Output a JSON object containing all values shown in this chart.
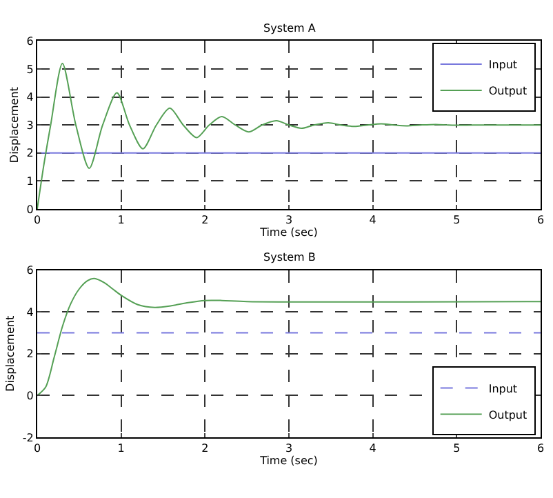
{
  "chart_data": [
    {
      "type": "line",
      "title": "System A",
      "xlabel": "Time (sec)",
      "ylabel": "Displacement",
      "xlim": [
        0,
        6
      ],
      "xticks": [
        0,
        1,
        2,
        3,
        4,
        5,
        6
      ],
      "ylim": [
        0,
        6
      ],
      "yticks": [
        0,
        1,
        2,
        3,
        4,
        5,
        6
      ],
      "grid": true,
      "legend": "top right",
      "series": [
        {
          "name": "Input",
          "color": "#7777dd",
          "line_style": "solid",
          "x": [
            0,
            6
          ],
          "values": [
            2,
            2
          ]
        },
        {
          "name": "Output",
          "color": "#55a055",
          "line_style": "solid",
          "x": [
            0,
            0.08,
            0.16,
            0.3,
            0.46,
            0.62,
            0.78,
            0.95,
            1.1,
            1.26,
            1.42,
            1.58,
            1.74,
            1.9,
            2.05,
            2.2,
            2.36,
            2.52,
            2.68,
            2.85,
            3.0,
            3.15,
            3.3,
            3.47,
            3.62,
            3.78,
            3.94,
            4.1,
            4.25,
            4.4,
            4.57,
            4.75,
            4.9,
            5.05,
            5.2,
            6
          ],
          "values": [
            0,
            1.6,
            3,
            5.2,
            3,
            1.45,
            3,
            4.15,
            3,
            2.15,
            3,
            3.6,
            3,
            2.55,
            3,
            3.3,
            3,
            2.75,
            3,
            3.15,
            3,
            2.88,
            3,
            3.08,
            3,
            2.95,
            3,
            3.04,
            3,
            2.97,
            3,
            3.02,
            3,
            2.99,
            3,
            3
          ]
        }
      ]
    },
    {
      "type": "line",
      "title": "System B",
      "xlabel": "Time (sec)",
      "ylabel": "Displacement",
      "xlim": [
        0,
        6
      ],
      "xticks": [
        0,
        1,
        2,
        3,
        4,
        5,
        6
      ],
      "ylim": [
        -2,
        6
      ],
      "yticks": [
        -2,
        0,
        2,
        4,
        6
      ],
      "grid": true,
      "legend": "bottom right",
      "series": [
        {
          "name": "Input",
          "color": "#7777dd",
          "line_style": "dashed",
          "x": [
            0,
            6
          ],
          "values": [
            3,
            3
          ]
        },
        {
          "name": "Output",
          "color": "#55a055",
          "line_style": "solid",
          "x": [
            0,
            0.1,
            0.2,
            0.3,
            0.4,
            0.5,
            0.6,
            0.68,
            0.8,
            0.9,
            1.0,
            1.2,
            1.4,
            1.6,
            1.8,
            2.0,
            2.2,
            2.5,
            6
          ],
          "values": [
            0,
            0.4,
            1.8,
            3.3,
            4.4,
            5.1,
            5.5,
            5.6,
            5.4,
            5.1,
            4.8,
            4.35,
            4.22,
            4.3,
            4.45,
            4.55,
            4.55,
            4.5,
            4.5
          ]
        }
      ]
    }
  ]
}
